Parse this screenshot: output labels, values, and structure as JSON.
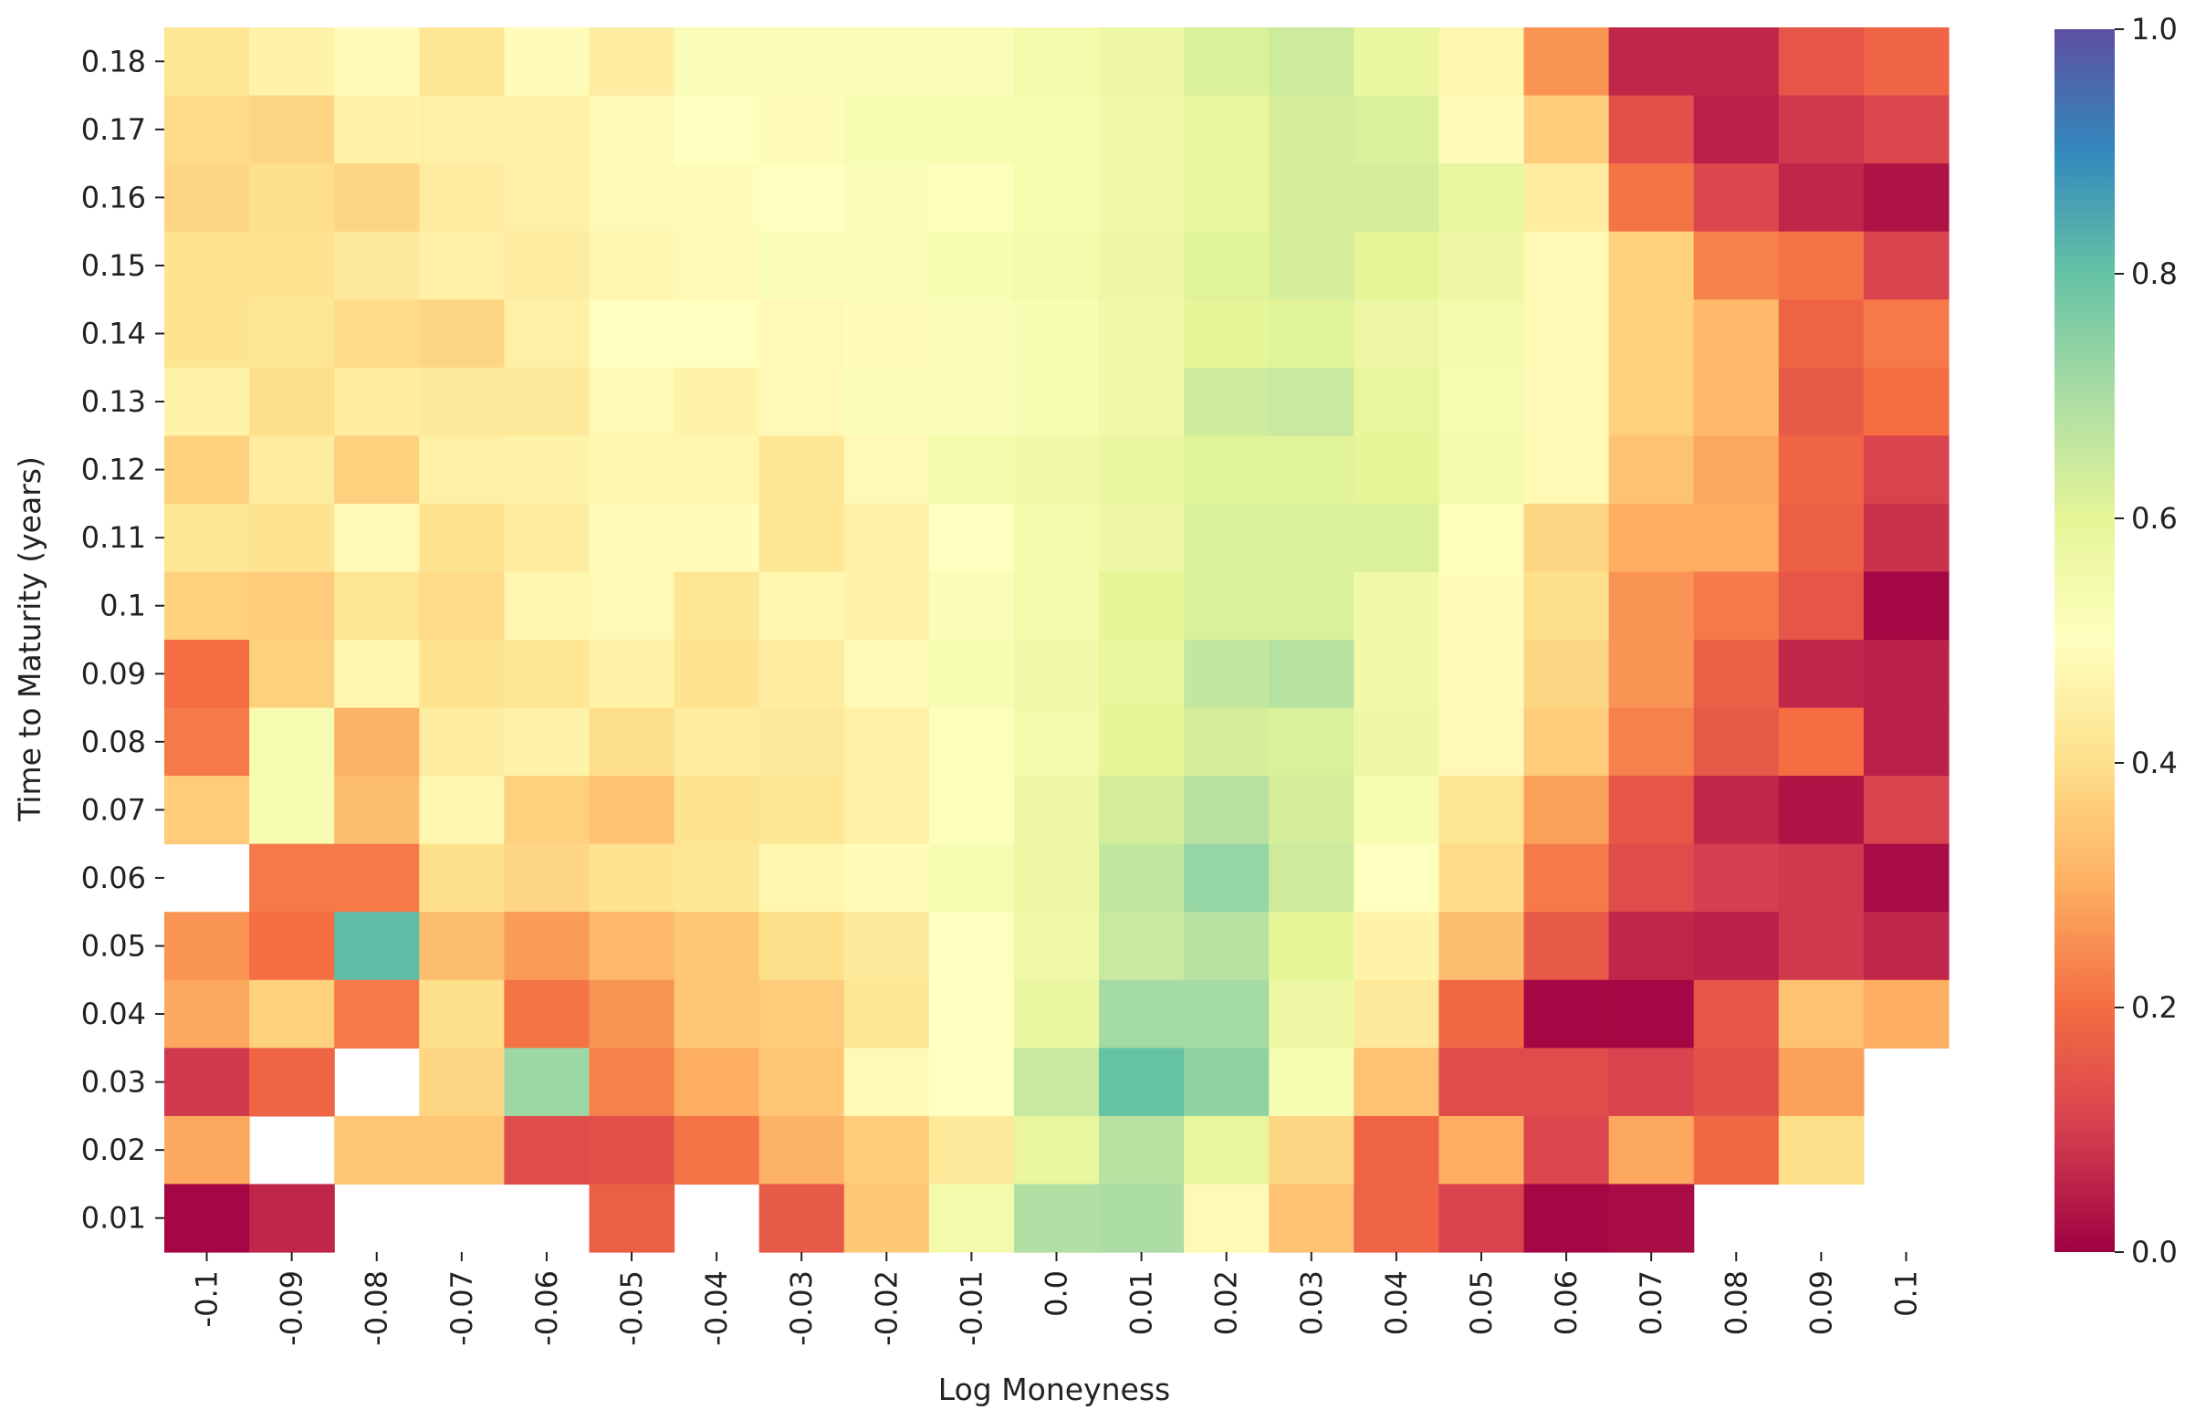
{
  "chart_data": {
    "type": "heatmap",
    "xlabel": "Log Moneyness",
    "ylabel": "Time to Maturity (years)",
    "x": [
      "-0.1",
      "-0.09",
      "-0.08",
      "-0.07",
      "-0.06",
      "-0.05",
      "-0.04",
      "-0.03",
      "-0.02",
      "-0.01",
      "0.0",
      "0.01",
      "0.02",
      "0.03",
      "0.04",
      "0.05",
      "0.06",
      "0.07",
      "0.08",
      "0.09",
      "0.1"
    ],
    "y": [
      "0.18",
      "0.17",
      "0.16",
      "0.15",
      "0.14",
      "0.13",
      "0.12",
      "0.11",
      "0.1",
      "0.09",
      "0.08",
      "0.07",
      "0.06",
      "0.05",
      "0.04",
      "0.03",
      "0.02",
      "0.01"
    ],
    "values": [
      [
        0.42,
        0.46,
        0.49,
        0.42,
        0.49,
        0.44,
        0.52,
        0.52,
        0.52,
        0.52,
        0.55,
        0.57,
        0.62,
        0.64,
        0.58,
        0.47,
        0.26,
        0.06,
        0.06,
        0.15,
        0.18
      ],
      [
        0.39,
        0.38,
        0.46,
        0.45,
        0.45,
        0.48,
        0.5,
        0.49,
        0.53,
        0.54,
        0.54,
        0.56,
        0.58,
        0.63,
        0.62,
        0.49,
        0.36,
        0.14,
        0.05,
        0.09,
        0.12
      ],
      [
        0.38,
        0.4,
        0.38,
        0.44,
        0.45,
        0.48,
        0.49,
        0.5,
        0.52,
        0.51,
        0.54,
        0.56,
        0.58,
        0.63,
        0.63,
        0.58,
        0.44,
        0.21,
        0.12,
        0.06,
        0.03
      ],
      [
        0.41,
        0.41,
        0.43,
        0.45,
        0.44,
        0.47,
        0.48,
        0.52,
        0.52,
        0.53,
        0.55,
        0.57,
        0.61,
        0.63,
        0.6,
        0.57,
        0.48,
        0.37,
        0.23,
        0.21,
        0.11
      ],
      [
        0.41,
        0.42,
        0.39,
        0.38,
        0.45,
        0.5,
        0.5,
        0.48,
        0.49,
        0.52,
        0.53,
        0.56,
        0.6,
        0.61,
        0.57,
        0.55,
        0.48,
        0.37,
        0.32,
        0.18,
        0.22
      ],
      [
        0.46,
        0.4,
        0.44,
        0.43,
        0.43,
        0.48,
        0.46,
        0.48,
        0.52,
        0.52,
        0.53,
        0.56,
        0.64,
        0.65,
        0.59,
        0.54,
        0.48,
        0.37,
        0.32,
        0.16,
        0.2
      ],
      [
        0.37,
        0.44,
        0.37,
        0.45,
        0.46,
        0.47,
        0.47,
        0.42,
        0.48,
        0.55,
        0.56,
        0.58,
        0.61,
        0.61,
        0.6,
        0.55,
        0.48,
        0.34,
        0.29,
        0.18,
        0.11
      ],
      [
        0.42,
        0.41,
        0.48,
        0.41,
        0.44,
        0.49,
        0.49,
        0.42,
        0.45,
        0.5,
        0.55,
        0.57,
        0.62,
        0.62,
        0.62,
        0.51,
        0.38,
        0.3,
        0.3,
        0.17,
        0.08
      ],
      [
        0.37,
        0.36,
        0.42,
        0.39,
        0.47,
        0.48,
        0.42,
        0.47,
        0.46,
        0.52,
        0.55,
        0.6,
        0.62,
        0.62,
        0.56,
        0.49,
        0.4,
        0.26,
        0.22,
        0.15,
        0.01
      ],
      [
        0.2,
        0.37,
        0.47,
        0.41,
        0.42,
        0.46,
        0.41,
        0.44,
        0.48,
        0.53,
        0.56,
        0.59,
        0.66,
        0.68,
        0.56,
        0.49,
        0.38,
        0.26,
        0.17,
        0.06,
        0.05
      ],
      [
        0.22,
        0.53,
        0.31,
        0.44,
        0.46,
        0.4,
        0.44,
        0.43,
        0.45,
        0.51,
        0.55,
        0.6,
        0.63,
        0.62,
        0.57,
        0.48,
        0.36,
        0.23,
        0.16,
        0.2,
        0.05
      ],
      [
        0.36,
        0.53,
        0.33,
        0.47,
        0.37,
        0.34,
        0.41,
        0.42,
        0.45,
        0.51,
        0.57,
        0.63,
        0.68,
        0.63,
        0.53,
        0.42,
        0.28,
        0.15,
        0.06,
        0.03,
        0.11
      ],
      [
        null,
        0.22,
        0.22,
        0.4,
        0.38,
        0.41,
        0.42,
        0.47,
        0.49,
        0.53,
        0.57,
        0.66,
        0.73,
        0.64,
        0.5,
        0.39,
        0.22,
        0.13,
        0.1,
        0.09,
        0.02
      ],
      [
        0.26,
        0.2,
        0.81,
        0.33,
        0.27,
        0.32,
        0.35,
        0.4,
        0.43,
        0.5,
        0.56,
        0.65,
        0.68,
        0.6,
        0.46,
        0.33,
        0.16,
        0.06,
        0.05,
        0.09,
        0.06
      ],
      [
        0.29,
        0.37,
        0.22,
        0.4,
        0.21,
        0.26,
        0.35,
        0.36,
        0.42,
        0.5,
        0.58,
        0.71,
        0.71,
        0.57,
        0.43,
        0.19,
        0.01,
        0.01,
        0.15,
        0.34,
        0.3
      ],
      [
        0.09,
        0.18,
        null,
        0.38,
        0.72,
        0.23,
        0.3,
        0.35,
        0.48,
        0.5,
        0.65,
        0.8,
        0.74,
        0.53,
        0.34,
        0.13,
        0.13,
        0.11,
        0.14,
        0.28,
        null
      ],
      [
        0.29,
        null,
        0.35,
        0.35,
        0.13,
        0.14,
        0.21,
        0.31,
        0.36,
        0.43,
        0.59,
        0.68,
        0.59,
        0.38,
        0.18,
        0.3,
        0.12,
        0.29,
        0.19,
        0.4,
        null
      ],
      [
        0.01,
        0.06,
        null,
        null,
        null,
        0.17,
        null,
        0.16,
        0.35,
        0.55,
        0.69,
        0.7,
        0.48,
        0.34,
        0.18,
        0.11,
        0.01,
        0.02,
        null,
        null,
        null
      ]
    ],
    "colorbar": {
      "min": 0.0,
      "max": 1.0,
      "ticks": [
        "0.0",
        "0.2",
        "0.4",
        "0.6",
        "0.8",
        "1.0"
      ],
      "colormap": "Spectral",
      "stops": [
        "#9e0142",
        "#d53e4f",
        "#f46d43",
        "#fdae61",
        "#fee08b",
        "#ffffbf",
        "#e6f598",
        "#abdda4",
        "#66c2a5",
        "#3288bd",
        "#5e4fa2"
      ]
    },
    "grid": false
  }
}
